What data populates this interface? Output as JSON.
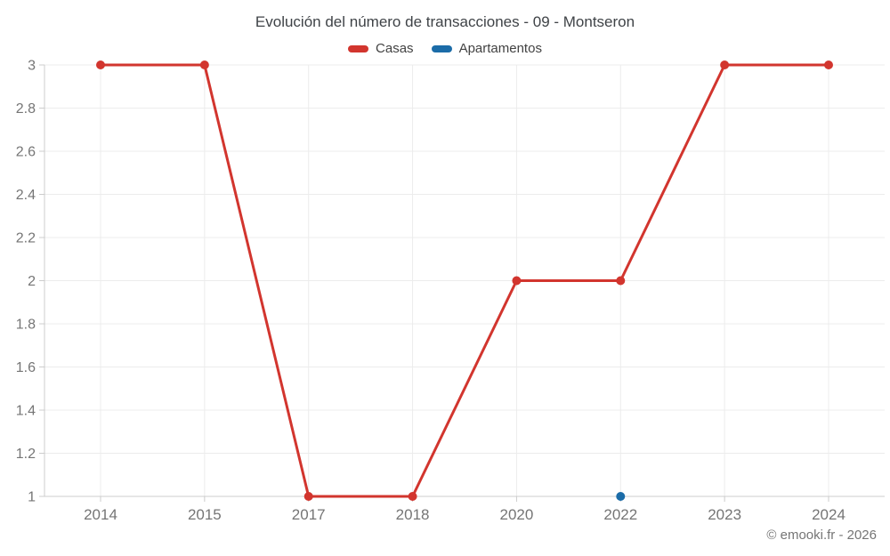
{
  "title": "Evolución del número de transacciones - 09 - Montseron",
  "copyright": "© emooki.fr - 2026",
  "chart_data": {
    "type": "line",
    "title": "Evolución del número de transacciones - 09 - Montseron",
    "categories": [
      "2014",
      "2015",
      "2017",
      "2018",
      "2020",
      "2022",
      "2023",
      "2024"
    ],
    "series": [
      {
        "name": "Casas",
        "color": "#d2352e",
        "values": [
          3,
          3,
          1,
          1,
          2,
          2,
          3,
          3
        ]
      },
      {
        "name": "Apartamentos",
        "color": "#1b6ca8",
        "values": [
          null,
          null,
          null,
          null,
          null,
          1,
          null,
          null
        ]
      }
    ],
    "xlabel": "",
    "ylabel": "",
    "ylim": [
      1,
      3
    ],
    "yticks": [
      1,
      1.2,
      1.4,
      1.6,
      1.8,
      2,
      2.2,
      2.4,
      2.6,
      2.8,
      3
    ],
    "grid": true,
    "legend_position": "top",
    "grid_color": "#ececec",
    "axis_color": "#cccccc",
    "tick_label_color": "#757575",
    "title_color": "#3f4347"
  }
}
